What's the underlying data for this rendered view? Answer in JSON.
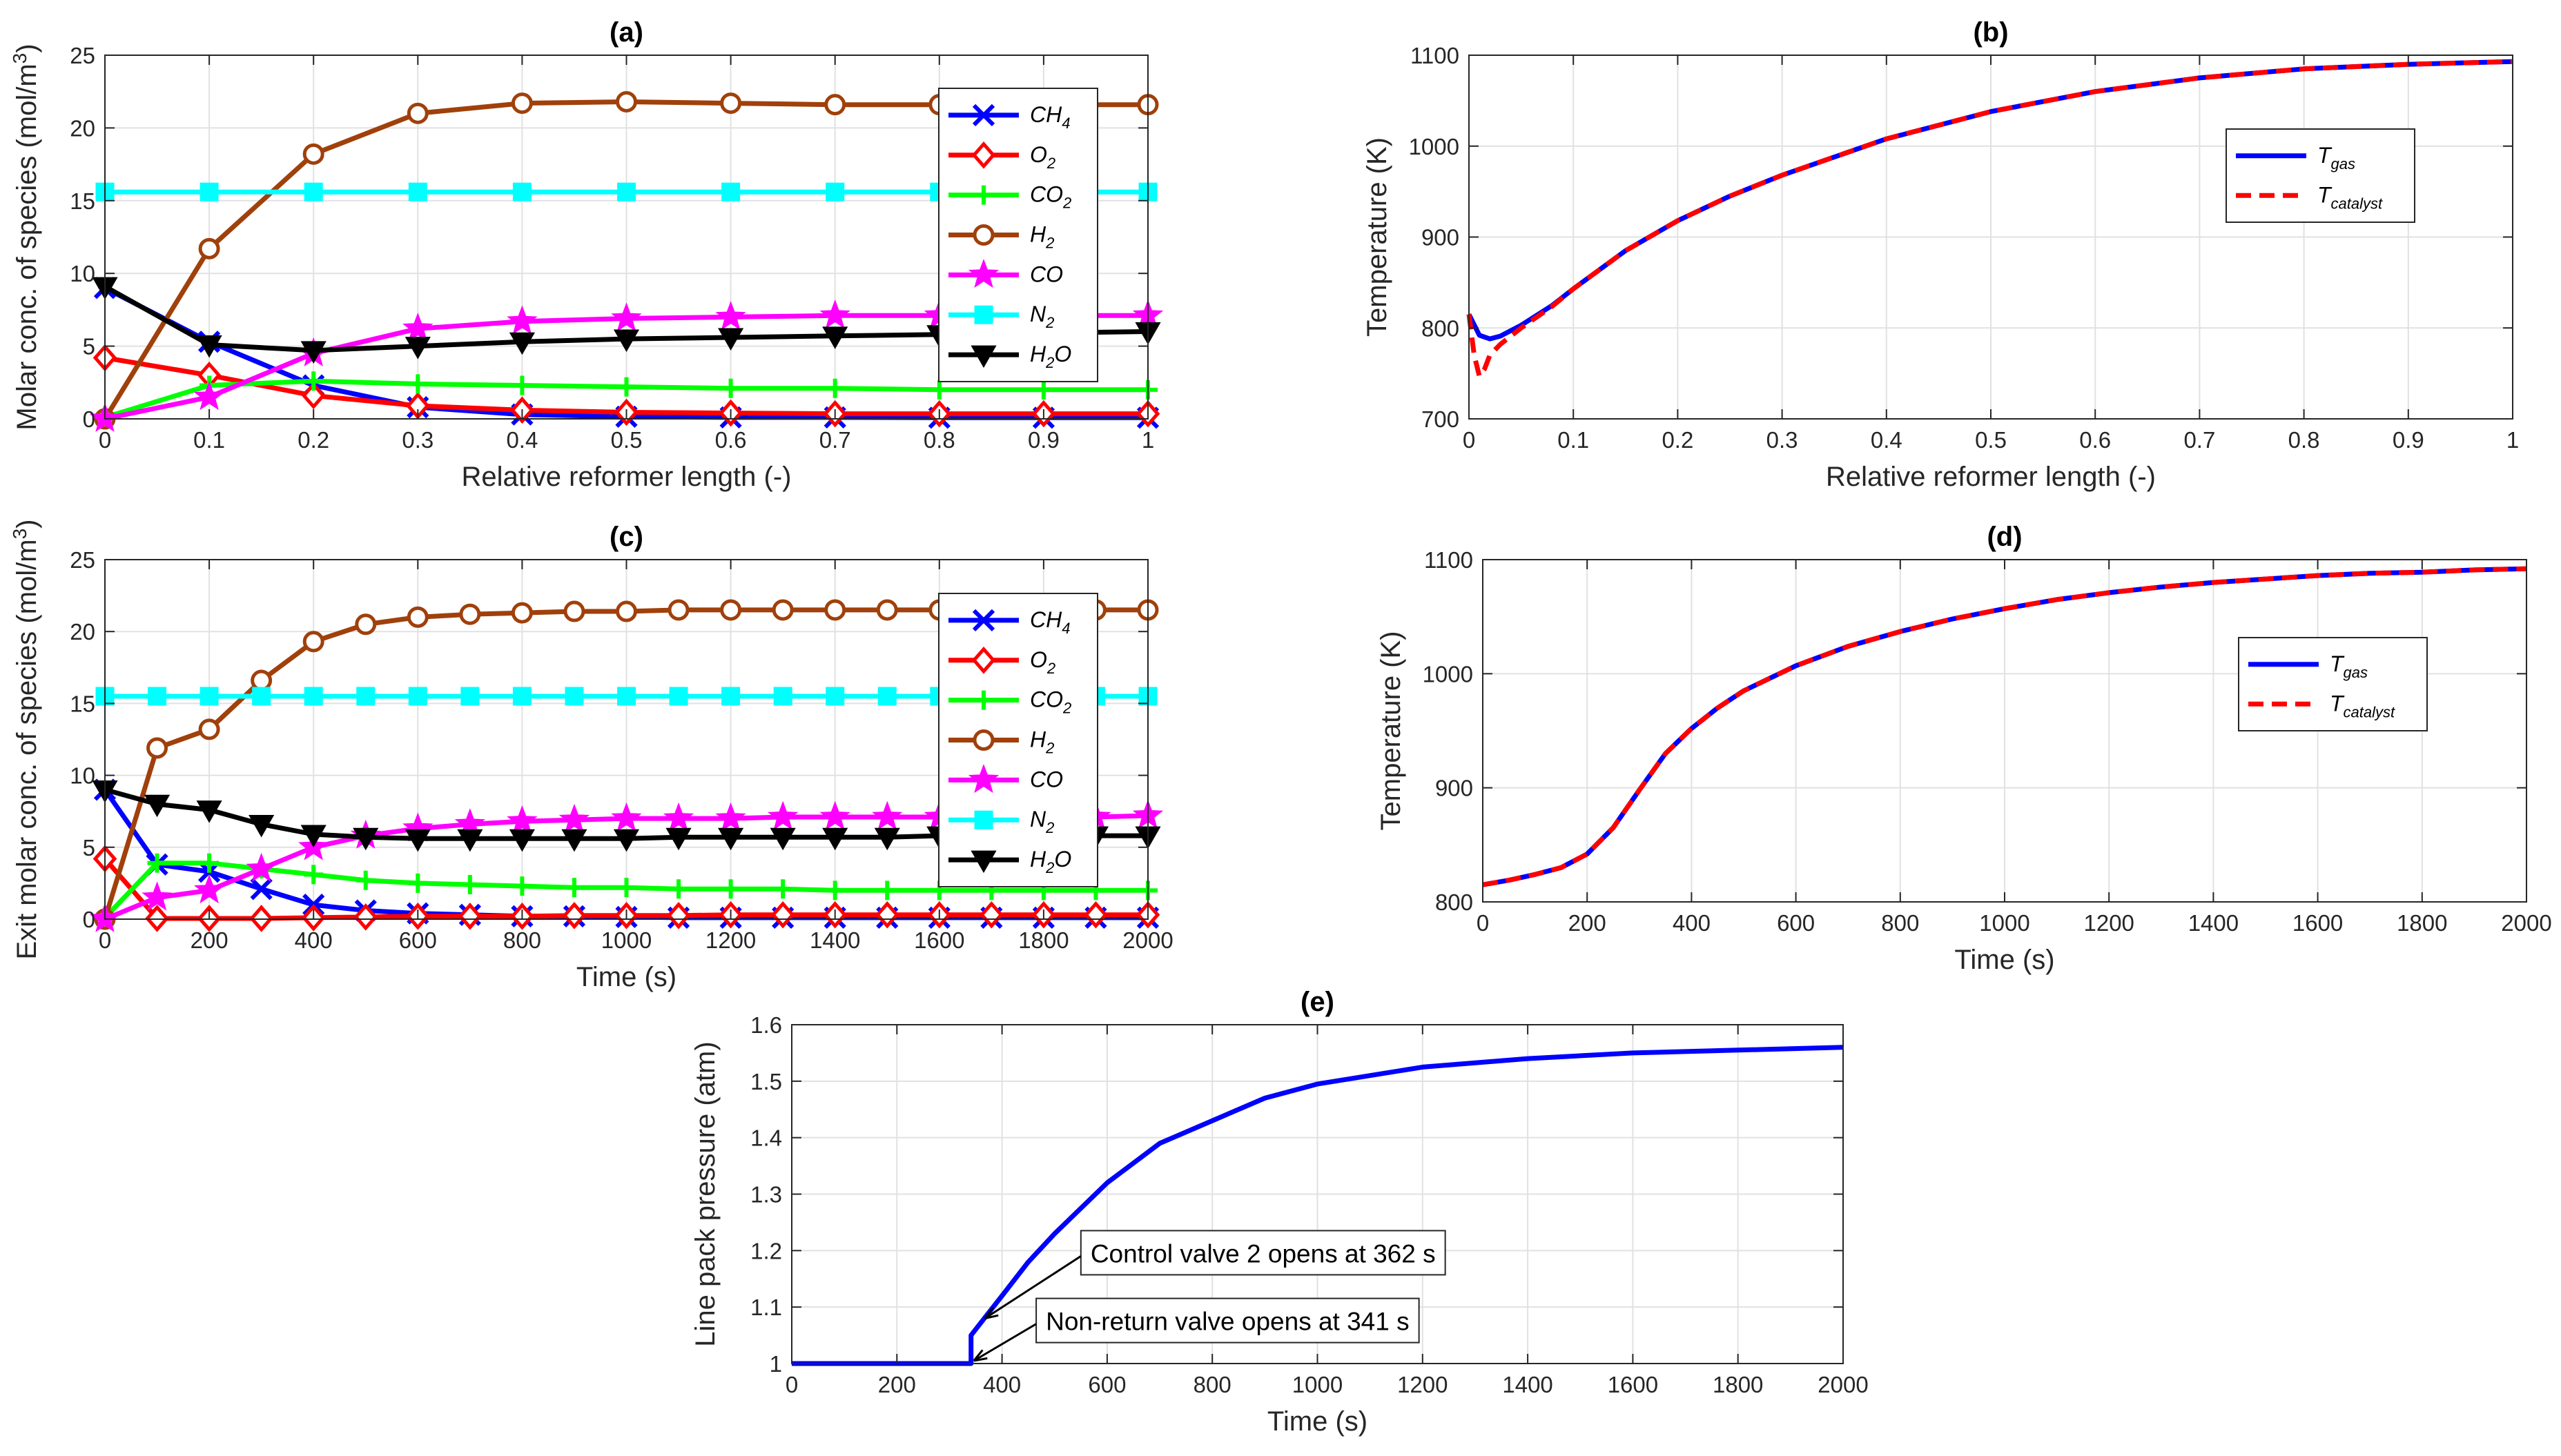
{
  "chart_data": [
    {
      "id": "a",
      "type": "line",
      "title": "(a)",
      "xlabel": "Relative reformer length (-)",
      "ylabel": "Molar conc. of species (mol/m",
      "ylabel_sup": "3",
      "ylabel_end": ")",
      "xlim": [
        0,
        1
      ],
      "ylim": [
        0,
        25
      ],
      "xticks": [
        0,
        0.1,
        0.2,
        0.3,
        0.4,
        0.5,
        0.6,
        0.7,
        0.8,
        0.9,
        1
      ],
      "xtick_labels": [
        "0",
        "0.1",
        "0.2",
        "0.3",
        "0.4",
        "0.5",
        "0.6",
        "0.7",
        "0.8",
        "0.9",
        "1"
      ],
      "yticks": [
        0,
        5,
        10,
        15,
        20,
        25
      ],
      "ytick_labels": [
        "0",
        "5",
        "10",
        "15",
        "20",
        "25"
      ],
      "grid": true,
      "legend_position": "top-right",
      "x": [
        0,
        0.1,
        0.2,
        0.3,
        0.4,
        0.5,
        0.6,
        0.7,
        0.8,
        0.9,
        1
      ],
      "series": [
        {
          "name": "CH",
          "sub": "4",
          "color": "#0000FF",
          "marker": "x",
          "values": [
            9.0,
            5.3,
            2.3,
            0.8,
            0.3,
            0.15,
            0.1,
            0.1,
            0.08,
            0.08,
            0.08
          ]
        },
        {
          "name": "O",
          "sub": "2",
          "color": "#FF0000",
          "marker": "diamond",
          "values": [
            4.2,
            3.0,
            1.6,
            0.9,
            0.6,
            0.45,
            0.4,
            0.35,
            0.35,
            0.35,
            0.35
          ]
        },
        {
          "name": "CO",
          "sub": "2",
          "color": "#00FF00",
          "marker": "plus",
          "values": [
            0.1,
            2.3,
            2.6,
            2.4,
            2.3,
            2.2,
            2.1,
            2.1,
            2.0,
            2.0,
            2.0
          ]
        },
        {
          "name": "H",
          "sub": "2",
          "color": "#A0400B",
          "marker": "circle",
          "values": [
            0,
            11.7,
            18.2,
            21.0,
            21.7,
            21.8,
            21.7,
            21.6,
            21.6,
            21.6,
            21.6
          ]
        },
        {
          "name": "CO",
          "sub": "",
          "color": "#FF00FF",
          "marker": "star",
          "values": [
            0,
            1.5,
            4.5,
            6.2,
            6.7,
            6.9,
            7.0,
            7.1,
            7.1,
            7.1,
            7.1
          ]
        },
        {
          "name": "N",
          "sub": "2",
          "color": "#00FFFF",
          "marker": "square",
          "values": [
            15.6,
            15.6,
            15.6,
            15.6,
            15.6,
            15.6,
            15.6,
            15.6,
            15.6,
            15.6,
            15.6
          ]
        },
        {
          "name": "H",
          "sub": "2",
          "name_end": "O",
          "color": "#000000",
          "marker": "triangle-down",
          "values": [
            9.1,
            5.1,
            4.7,
            5.0,
            5.3,
            5.5,
            5.6,
            5.7,
            5.8,
            5.9,
            6.0
          ]
        }
      ]
    },
    {
      "id": "b",
      "type": "line",
      "title": "(b)",
      "xlabel": "Relative reformer length (-)",
      "ylabel": "Temperature (K)",
      "xlim": [
        0,
        1
      ],
      "ylim": [
        700,
        1100
      ],
      "xticks": [
        0,
        0.1,
        0.2,
        0.3,
        0.4,
        0.5,
        0.6,
        0.7,
        0.8,
        0.9,
        1
      ],
      "xtick_labels": [
        "0",
        "0.1",
        "0.2",
        "0.3",
        "0.4",
        "0.5",
        "0.6",
        "0.7",
        "0.8",
        "0.9",
        "1"
      ],
      "yticks": [
        700,
        800,
        900,
        1000,
        1100
      ],
      "ytick_labels": [
        "700",
        "800",
        "900",
        "1000",
        "1100"
      ],
      "grid": true,
      "legend_position": "top-right",
      "series": [
        {
          "name": "T",
          "sub": "gas",
          "color": "#0000FF",
          "style": "solid",
          "x": [
            0,
            0.01,
            0.02,
            0.03,
            0.05,
            0.08,
            0.1,
            0.15,
            0.2,
            0.25,
            0.3,
            0.4,
            0.5,
            0.6,
            0.7,
            0.8,
            0.9,
            1.0
          ],
          "values": [
            815,
            792,
            788,
            791,
            803,
            825,
            843,
            885,
            918,
            945,
            968,
            1008,
            1038,
            1060,
            1075,
            1085,
            1090,
            1093
          ]
        },
        {
          "name": "T",
          "sub": "catalyst",
          "color": "#FF0000",
          "style": "dashed",
          "x": [
            0,
            0.005,
            0.01,
            0.015,
            0.02,
            0.03,
            0.05,
            0.08,
            0.1,
            0.15,
            0.2,
            0.25,
            0.3,
            0.4,
            0.5,
            0.6,
            0.7,
            0.8,
            0.9,
            1.0
          ],
          "values": [
            815,
            770,
            747,
            755,
            770,
            782,
            800,
            824,
            843,
            885,
            918,
            945,
            968,
            1008,
            1038,
            1060,
            1075,
            1085,
            1090,
            1093
          ]
        }
      ]
    },
    {
      "id": "c",
      "type": "line",
      "title": "(c)",
      "xlabel": "Time (s)",
      "ylabel": "Exit molar conc. of species (mol/m",
      "ylabel_sup": "3",
      "ylabel_end": ")",
      "xlim": [
        0,
        2000
      ],
      "ylim": [
        0,
        25
      ],
      "xticks": [
        0,
        200,
        400,
        600,
        800,
        1000,
        1200,
        1400,
        1600,
        1800,
        2000
      ],
      "xtick_labels": [
        "0",
        "200",
        "400",
        "600",
        "800",
        "1000",
        "1200",
        "1400",
        "1600",
        "1800",
        "2000"
      ],
      "yticks": [
        0,
        5,
        10,
        15,
        20,
        25
      ],
      "ytick_labels": [
        "0",
        "5",
        "10",
        "15",
        "20",
        "25"
      ],
      "grid": true,
      "legend_position": "top-right",
      "x": [
        0,
        100,
        200,
        300,
        400,
        500,
        600,
        700,
        800,
        900,
        1000,
        1100,
        1200,
        1300,
        1400,
        1500,
        1600,
        1700,
        1800,
        1900,
        2000
      ],
      "series": [
        {
          "name": "CH",
          "sub": "4",
          "color": "#0000FF",
          "marker": "x",
          "values": [
            9.0,
            3.8,
            3.3,
            2.1,
            1.0,
            0.6,
            0.4,
            0.3,
            0.2,
            0.2,
            0.15,
            0.1,
            0.1,
            0.1,
            0.1,
            0.1,
            0.1,
            0.1,
            0.1,
            0.1,
            0.1
          ]
        },
        {
          "name": "O",
          "sub": "2",
          "color": "#FF0000",
          "marker": "diamond",
          "values": [
            4.2,
            0.05,
            0.05,
            0.05,
            0.1,
            0.15,
            0.2,
            0.2,
            0.2,
            0.25,
            0.25,
            0.25,
            0.3,
            0.3,
            0.3,
            0.3,
            0.3,
            0.3,
            0.3,
            0.3,
            0.3
          ]
        },
        {
          "name": "CO",
          "sub": "2",
          "color": "#00FF00",
          "marker": "plus",
          "values": [
            0.1,
            3.9,
            3.9,
            3.5,
            3.1,
            2.7,
            2.5,
            2.4,
            2.3,
            2.2,
            2.2,
            2.1,
            2.1,
            2.1,
            2.0,
            2.0,
            2.0,
            2.0,
            2.0,
            2.0,
            2.0
          ]
        },
        {
          "name": "H",
          "sub": "2",
          "color": "#A0400B",
          "marker": "circle",
          "values": [
            0,
            11.9,
            13.2,
            16.6,
            19.3,
            20.5,
            21.0,
            21.2,
            21.3,
            21.4,
            21.4,
            21.5,
            21.5,
            21.5,
            21.5,
            21.5,
            21.5,
            21.5,
            21.5,
            21.5,
            21.5
          ]
        },
        {
          "name": "CO",
          "sub": "",
          "color": "#FF00FF",
          "marker": "star",
          "values": [
            0,
            1.5,
            2.0,
            3.5,
            5.0,
            5.8,
            6.3,
            6.6,
            6.8,
            6.9,
            7.0,
            7.0,
            7.0,
            7.1,
            7.1,
            7.1,
            7.1,
            7.1,
            7.1,
            7.1,
            7.2
          ]
        },
        {
          "name": "N",
          "sub": "2",
          "color": "#00FFFF",
          "marker": "square",
          "values": [
            15.5,
            15.5,
            15.5,
            15.5,
            15.5,
            15.5,
            15.5,
            15.5,
            15.5,
            15.5,
            15.5,
            15.5,
            15.5,
            15.5,
            15.5,
            15.5,
            15.5,
            15.5,
            15.5,
            15.5,
            15.5
          ]
        },
        {
          "name": "H",
          "sub": "2",
          "name_end": "O",
          "color": "#000000",
          "marker": "triangle-down",
          "values": [
            9.0,
            8.0,
            7.6,
            6.6,
            5.9,
            5.7,
            5.6,
            5.6,
            5.6,
            5.6,
            5.6,
            5.7,
            5.7,
            5.7,
            5.7,
            5.7,
            5.8,
            5.8,
            5.8,
            5.8,
            5.8
          ]
        }
      ]
    },
    {
      "id": "d",
      "type": "line",
      "title": "(d)",
      "xlabel": "Time (s)",
      "ylabel": "Temperature (K)",
      "xlim": [
        0,
        2000
      ],
      "ylim": [
        800,
        1100
      ],
      "xticks": [
        0,
        200,
        400,
        600,
        800,
        1000,
        1200,
        1400,
        1600,
        1800,
        2000
      ],
      "xtick_labels": [
        "0",
        "200",
        "400",
        "600",
        "800",
        "1000",
        "1200",
        "1400",
        "1600",
        "1800",
        "2000"
      ],
      "yticks": [
        800,
        900,
        1000,
        1100
      ],
      "ytick_labels": [
        "800",
        "900",
        "1000",
        "1100"
      ],
      "grid": true,
      "legend_position": "top-right",
      "series": [
        {
          "name": "T",
          "sub": "gas",
          "color": "#0000FF",
          "style": "solid",
          "x": [
            0,
            50,
            100,
            150,
            200,
            250,
            300,
            350,
            400,
            450,
            500,
            600,
            700,
            800,
            900,
            1000,
            1100,
            1200,
            1300,
            1400,
            1500,
            1600,
            1700,
            1800,
            1900,
            2000
          ],
          "values": [
            815,
            819,
            824,
            830,
            842,
            865,
            898,
            930,
            952,
            970,
            985,
            1007,
            1024,
            1037,
            1048,
            1057,
            1065,
            1071,
            1076,
            1080,
            1083,
            1086,
            1088,
            1089,
            1091,
            1092
          ]
        },
        {
          "name": "T",
          "sub": "catalyst",
          "color": "#FF0000",
          "style": "dashed",
          "x": [
            0,
            50,
            100,
            150,
            200,
            250,
            300,
            350,
            400,
            450,
            500,
            600,
            700,
            800,
            900,
            1000,
            1100,
            1200,
            1300,
            1400,
            1500,
            1600,
            1700,
            1800,
            1900,
            2000
          ],
          "values": [
            815,
            819,
            824,
            830,
            842,
            865,
            898,
            930,
            952,
            970,
            985,
            1007,
            1024,
            1037,
            1048,
            1057,
            1065,
            1071,
            1076,
            1080,
            1083,
            1086,
            1088,
            1089,
            1091,
            1092
          ]
        }
      ]
    },
    {
      "id": "e",
      "type": "line",
      "title": "(e)",
      "xlabel": "Time (s)",
      "ylabel": "Line pack pressure (atm)",
      "xlim": [
        0,
        2000
      ],
      "ylim": [
        1,
        1.6
      ],
      "xticks": [
        0,
        200,
        400,
        600,
        800,
        1000,
        1200,
        1400,
        1600,
        1800,
        2000
      ],
      "xtick_labels": [
        "0",
        "200",
        "400",
        "600",
        "800",
        "1000",
        "1200",
        "1400",
        "1600",
        "1800",
        "2000"
      ],
      "yticks": [
        1,
        1.1,
        1.2,
        1.3,
        1.4,
        1.5,
        1.6
      ],
      "ytick_labels": [
        "1",
        "1.1",
        "1.2",
        "1.3",
        "1.4",
        "1.5",
        "1.6"
      ],
      "grid": true,
      "series": [
        {
          "name": "Line pack pressure",
          "color": "#0000FF",
          "style": "solid",
          "x": [
            0,
            341,
            341,
            362,
            400,
            450,
            500,
            600,
            700,
            800,
            900,
            1000,
            1200,
            1400,
            1600,
            1800,
            2000
          ],
          "values": [
            1.0,
            1.0,
            1.05,
            1.075,
            1.12,
            1.18,
            1.23,
            1.32,
            1.39,
            1.43,
            1.47,
            1.495,
            1.525,
            1.54,
            1.55,
            1.555,
            1.56
          ]
        }
      ],
      "annotations": [
        {
          "text": "Control valve 2 opens at 362 s",
          "target_x": 362,
          "target_y": 1.075,
          "box_x": 550,
          "box_y": 1.195
        },
        {
          "text": "Non-return valve opens at 341 s",
          "target_x": 341,
          "target_y": 1.0,
          "box_x": 465,
          "box_y": 1.075
        }
      ]
    }
  ]
}
